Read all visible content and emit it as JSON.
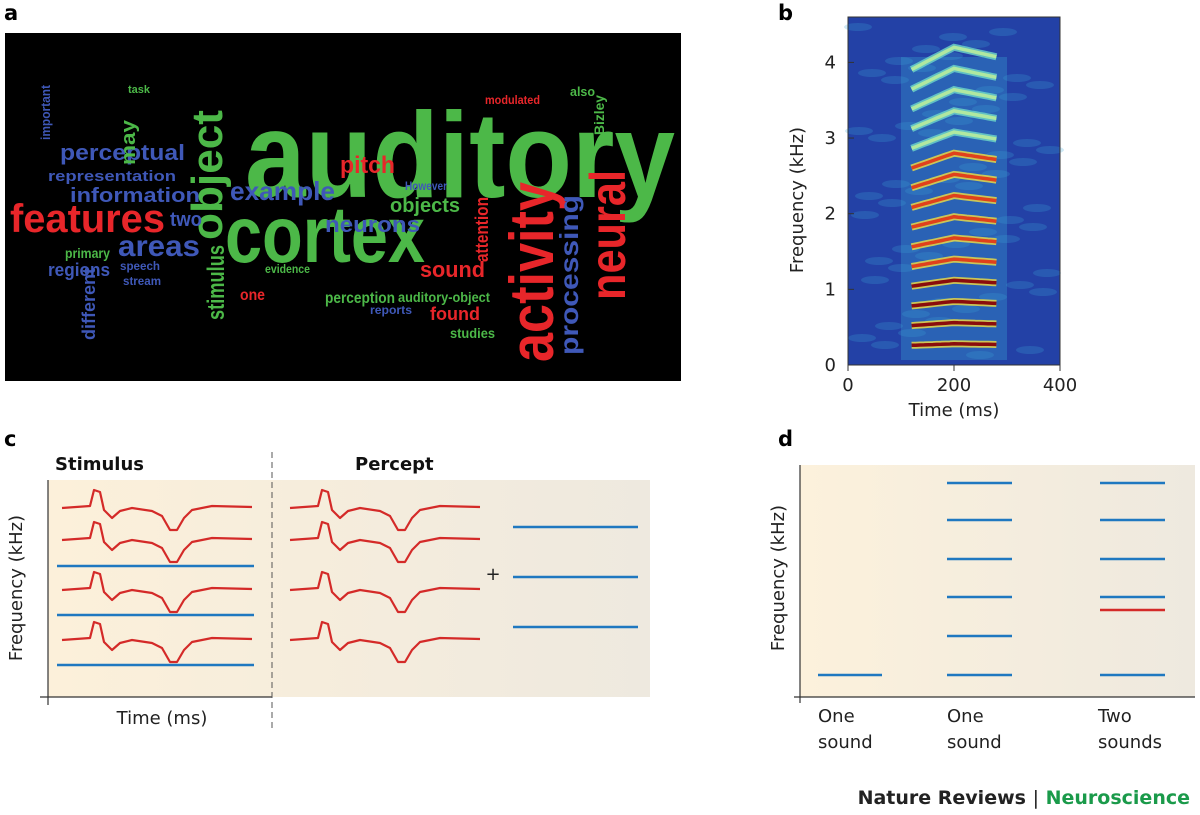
{
  "panels": {
    "a": {
      "label": "a",
      "words": [
        "auditory",
        "cortex",
        "activity",
        "neural",
        "features",
        "object",
        "stimulus",
        "processing",
        "areas",
        "perceptual",
        "information",
        "representation",
        "example",
        "pitch",
        "neurons",
        "objects",
        "sound",
        "found",
        "two",
        "regions",
        "different",
        "primary",
        "perception",
        "auditory-object",
        "may",
        "evidence",
        "one",
        "attention",
        "studies",
        "However",
        "stream",
        "speech",
        "task",
        "also",
        "Bizley",
        "modulated",
        "reports",
        "important"
      ]
    },
    "b": {
      "label": "b",
      "x_label": "Time (ms)",
      "y_label": "Frequency (kHz)",
      "xlim": [
        0,
        400
      ],
      "ylim": [
        0,
        4.6
      ],
      "xticks": [
        0,
        200,
        400
      ],
      "yticks": [
        0,
        1,
        2,
        3,
        4
      ]
    },
    "c": {
      "label": "c",
      "stimulus": "Stimulus",
      "percept": "Percept",
      "plus": "+",
      "y_label": "Frequency (kHz)",
      "x_label": "Time (ms)"
    },
    "d": {
      "label": "d",
      "y_label": "Frequency (kHz)",
      "groups": [
        [
          "One",
          "sound"
        ],
        [
          "One",
          "sound"
        ],
        [
          "Two",
          "sounds"
        ]
      ]
    }
  },
  "footer": {
    "journal": "Nature Reviews",
    "separator": "|",
    "field": "Neuroscience"
  }
}
